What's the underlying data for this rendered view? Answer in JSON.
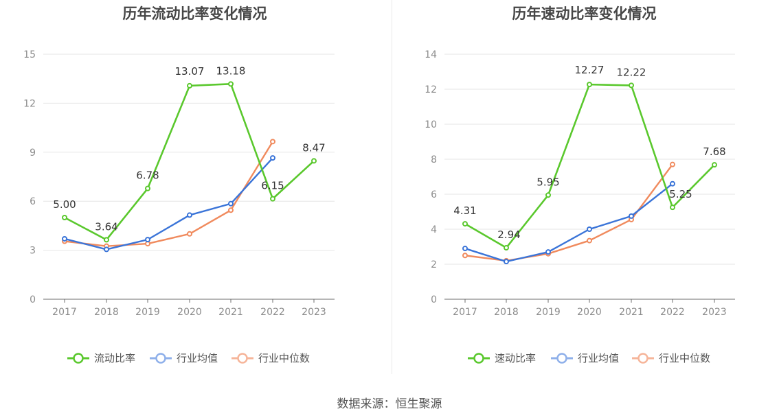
{
  "source": "数据来源：恒生聚源",
  "chart_data": [
    {
      "type": "line",
      "title": "历年流动比率变化情况",
      "categories": [
        "2017",
        "2018",
        "2019",
        "2020",
        "2021",
        "2022",
        "2023"
      ],
      "ylim": [
        0,
        15
      ],
      "yticks": [
        0,
        3,
        6,
        9,
        12,
        15
      ],
      "xlabel": "",
      "ylabel": "",
      "legend_position": "bottom",
      "series": [
        {
          "name": "流动比率",
          "color": "#5ac82d",
          "labels": true,
          "values": [
            5.0,
            3.64,
            6.78,
            13.07,
            13.18,
            6.15,
            8.47
          ],
          "label_text": [
            "5.00",
            "3.64",
            "6.78",
            "13.07",
            "13.18",
            "6.15",
            "8.47"
          ]
        },
        {
          "name": "行业均值",
          "color": "#3a74d8",
          "labels": false,
          "values": [
            3.7,
            3.05,
            3.65,
            5.15,
            5.85,
            8.65,
            null
          ]
        },
        {
          "name": "行业中位数",
          "color": "#f08a5d",
          "labels": false,
          "values": [
            3.55,
            3.25,
            3.4,
            4.0,
            5.45,
            9.65,
            null
          ]
        }
      ]
    },
    {
      "type": "line",
      "title": "历年速动比率变化情况",
      "categories": [
        "2017",
        "2018",
        "2019",
        "2020",
        "2021",
        "2022",
        "2023"
      ],
      "ylim": [
        0,
        14
      ],
      "yticks": [
        0,
        2,
        4,
        6,
        8,
        10,
        12,
        14
      ],
      "xlabel": "",
      "ylabel": "",
      "legend_position": "bottom",
      "series": [
        {
          "name": "速动比率",
          "color": "#5ac82d",
          "labels": true,
          "values": [
            4.31,
            2.94,
            5.95,
            12.27,
            12.22,
            5.25,
            7.68
          ],
          "label_text": [
            "4.31",
            "2.94",
            "5.95",
            "12.27",
            "12.22",
            "5.25",
            "7.68"
          ]
        },
        {
          "name": "行业均值",
          "color": "#3a74d8",
          "labels": false,
          "values": [
            2.9,
            2.15,
            2.7,
            4.0,
            4.75,
            6.6,
            null
          ]
        },
        {
          "name": "行业中位数",
          "color": "#f08a5d",
          "labels": false,
          "values": [
            2.5,
            2.2,
            2.6,
            3.35,
            4.55,
            7.7,
            null
          ]
        }
      ]
    }
  ]
}
